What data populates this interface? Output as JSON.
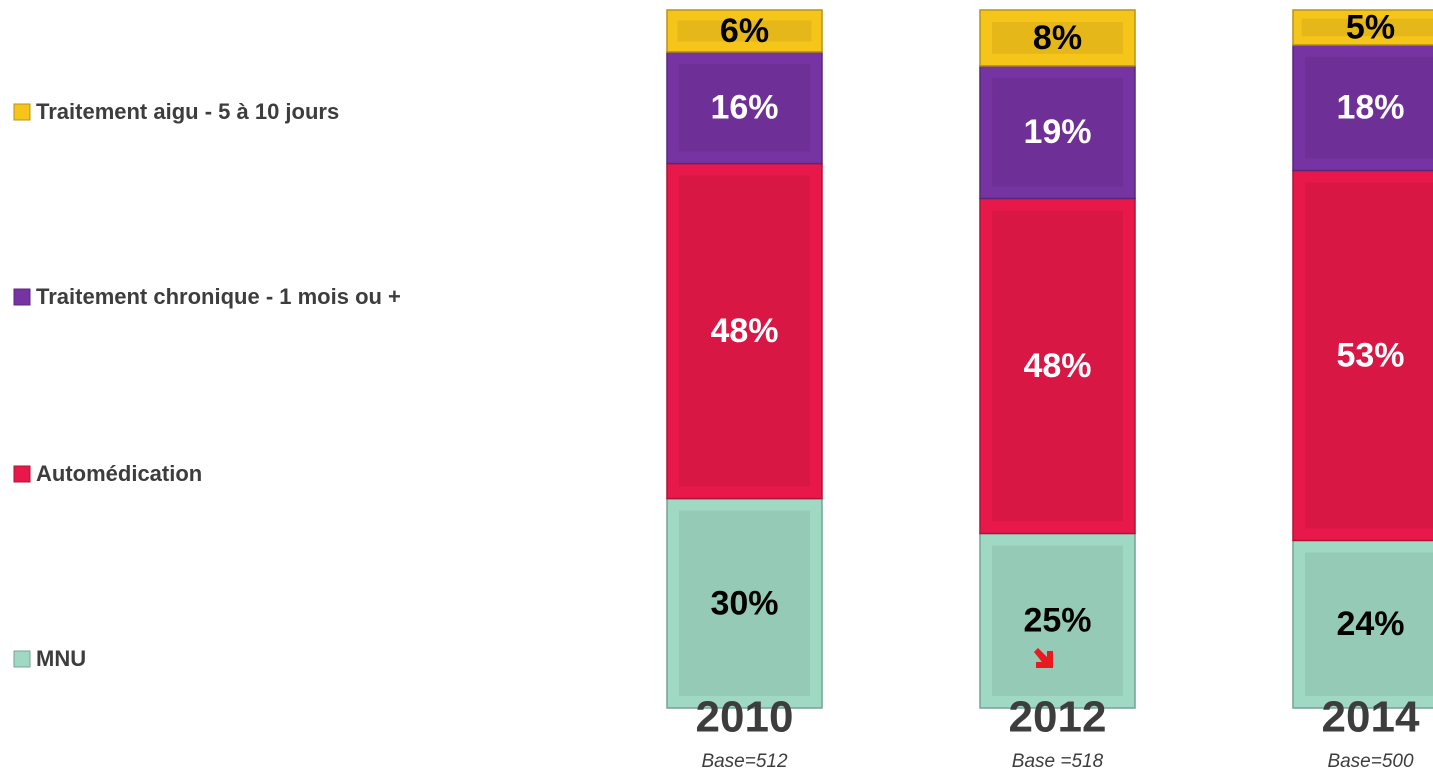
{
  "chart_data": {
    "type": "stacked_bar",
    "categories": [
      "2010",
      "2012",
      "2014"
    ],
    "base_labels": [
      "Base=512",
      "Base =518",
      "Base=500"
    ],
    "series": [
      {
        "name": "MNU",
        "color": "#9fd9c4",
        "label_color": "#000000",
        "values": [
          30,
          25,
          24
        ],
        "value_labels": [
          "30%",
          "25%",
          "24%"
        ]
      },
      {
        "name": "Automédication",
        "color": "#e8194a",
        "label_color": "#ffffff",
        "values": [
          48,
          48,
          53
        ],
        "value_labels": [
          "48%",
          "48%",
          "53%"
        ]
      },
      {
        "name": "Traitement chronique - 1 mois ou +",
        "color": "#7634a2",
        "label_color": "#ffffff",
        "values": [
          16,
          19,
          18
        ],
        "value_labels": [
          "16%",
          "19%",
          "18%"
        ]
      },
      {
        "name": "Traitement aigu - 5 à 10 jours",
        "color": "#f6c51a",
        "label_color": "#000000",
        "values": [
          6,
          8,
          5
        ],
        "value_labels": [
          "6%",
          "8%",
          "5%"
        ]
      }
    ],
    "legend": "left"
  }
}
